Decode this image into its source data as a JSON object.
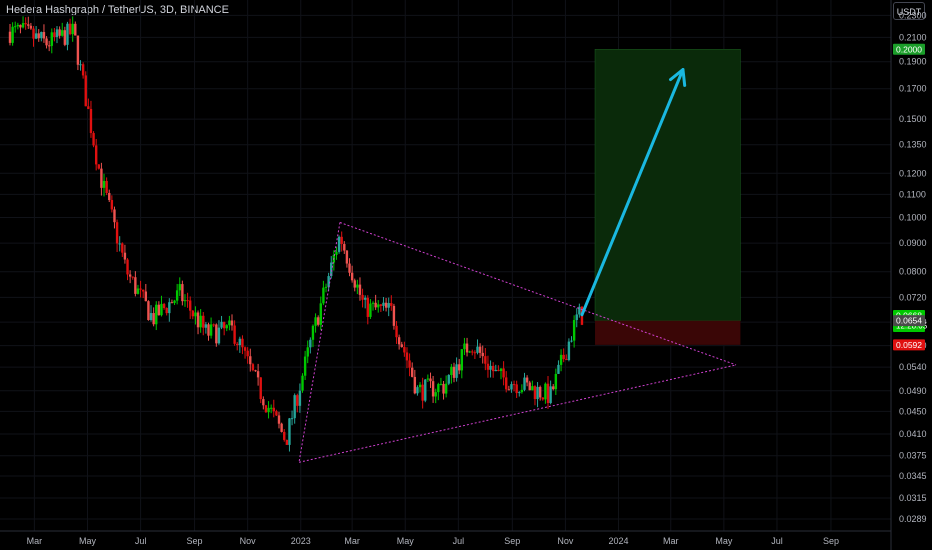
{
  "header": {
    "title": "Hedera Hashgraph / TetherUS, 3D, BINANCE",
    "currency": "USDT"
  },
  "price_axis": {
    "ticks": [
      "0.2300",
      "0.2100",
      "0.1900",
      "0.1700",
      "0.1500",
      "0.1350",
      "0.1200",
      "0.1100",
      "0.1000",
      "0.0900",
      "0.0800",
      "0.0720",
      "0.0650",
      "0.0590",
      "0.0540",
      "0.0490",
      "0.0450",
      "0.0410",
      "0.0375",
      "0.0345",
      "0.0315",
      "0.0289"
    ]
  },
  "time_axis": {
    "ticks": [
      "Mar",
      "May",
      "Jul",
      "Sep",
      "Nov",
      "2023",
      "Mar",
      "May",
      "Jul",
      "Sep",
      "Nov",
      "2024",
      "Mar",
      "May",
      "Jul",
      "Sep"
    ]
  },
  "price_labels": {
    "target": "0.2000",
    "current": "0.0668",
    "countdown": "12:28:05",
    "entry": "0.0654",
    "stop": "0.0592"
  },
  "colors": {
    "background": "#000000",
    "up": "#26a69a",
    "up_bright": "#00c800",
    "down": "#ef5350",
    "down_bright": "#e01010",
    "triangle": "#d040d0",
    "arrow": "#1ab8e0",
    "target_zone": "#0a2a0a",
    "stop_zone": "#3a0606",
    "target_label": "#1b9e2a",
    "current_label": "#00c800",
    "entry_label": "#4a4a4a",
    "stop_label": "#e01010"
  },
  "chart_data": {
    "type": "candlestick",
    "title": "Hedera Hashgraph / TetherUS, 3D, BINANCE",
    "scale": "log",
    "ylim": [
      0.0275,
      0.245
    ],
    "x": [
      "2022-02",
      "2022-03",
      "2022-04",
      "2022-05",
      "2022-06",
      "2022-07",
      "2022-08",
      "2022-09",
      "2022-10",
      "2022-11",
      "2022-12",
      "2023-01",
      "2023-02",
      "2023-03",
      "2023-04",
      "2023-05",
      "2023-06",
      "2023-07",
      "2023-08",
      "2023-09",
      "2023-10",
      "2023-11"
    ],
    "close": [
      0.215,
      0.205,
      0.215,
      0.12,
      0.08,
      0.066,
      0.073,
      0.062,
      0.063,
      0.049,
      0.04,
      0.062,
      0.093,
      0.069,
      0.068,
      0.049,
      0.05,
      0.06,
      0.052,
      0.05,
      0.048,
      0.0668
    ],
    "annotations": {
      "triangle": {
        "upper": [
          [
            "2023-02-15",
            0.098
          ],
          [
            "2023-11-20",
            0.066
          ]
        ],
        "lower": [
          [
            "2022-12-30",
            0.0365
          ],
          [
            "2023-11-20",
            0.048
          ]
        ],
        "apex": [
          "2024-05-15",
          0.0545
        ]
      },
      "position": {
        "entry": 0.0654,
        "target": 0.2,
        "stop": 0.0592
      },
      "arrow": {
        "from": [
          "2023-11-20",
          0.067
        ],
        "to": [
          "2024-03-15",
          0.184
        ]
      }
    }
  }
}
